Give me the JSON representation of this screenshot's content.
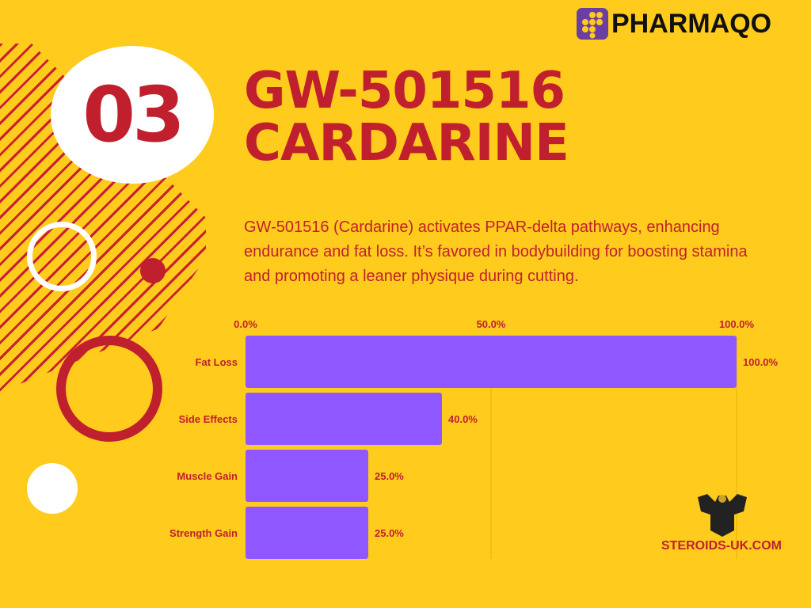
{
  "badge_number": "03",
  "title_lines": [
    "GW-501516",
    "CARDARINE"
  ],
  "description": "GW-501516 (Cardarine) activates PPAR-delta pathways, enhancing endurance and fat loss. It’s favored in bodybuilding for boosting stamina and promoting a leaner physique during cutting.",
  "logo": {
    "text": "PHARMAQO",
    "icon": "pill-grid-icon"
  },
  "watermark": {
    "text": "STEROIDS-UK.COM",
    "icon": "bodybuilder-icon"
  },
  "colors": {
    "background": "#FFCB1D",
    "accent": "#C0202E",
    "bar": "#8E57FF"
  },
  "chart_data": {
    "type": "bar",
    "orientation": "horizontal",
    "categories": [
      "Fat Loss",
      "Side Effects",
      "Muscle Gain",
      "Strength Gain"
    ],
    "values": [
      100,
      40,
      25,
      25
    ],
    "value_labels": [
      "100.0%",
      "40.0%",
      "25.0%",
      "25.0%"
    ],
    "xlim": [
      0,
      100
    ],
    "x_ticks": [
      "0.0%",
      "50.0%",
      "100.0%"
    ],
    "x_tick_values": [
      0,
      50,
      100
    ],
    "axis_position": "top",
    "grid": true
  }
}
